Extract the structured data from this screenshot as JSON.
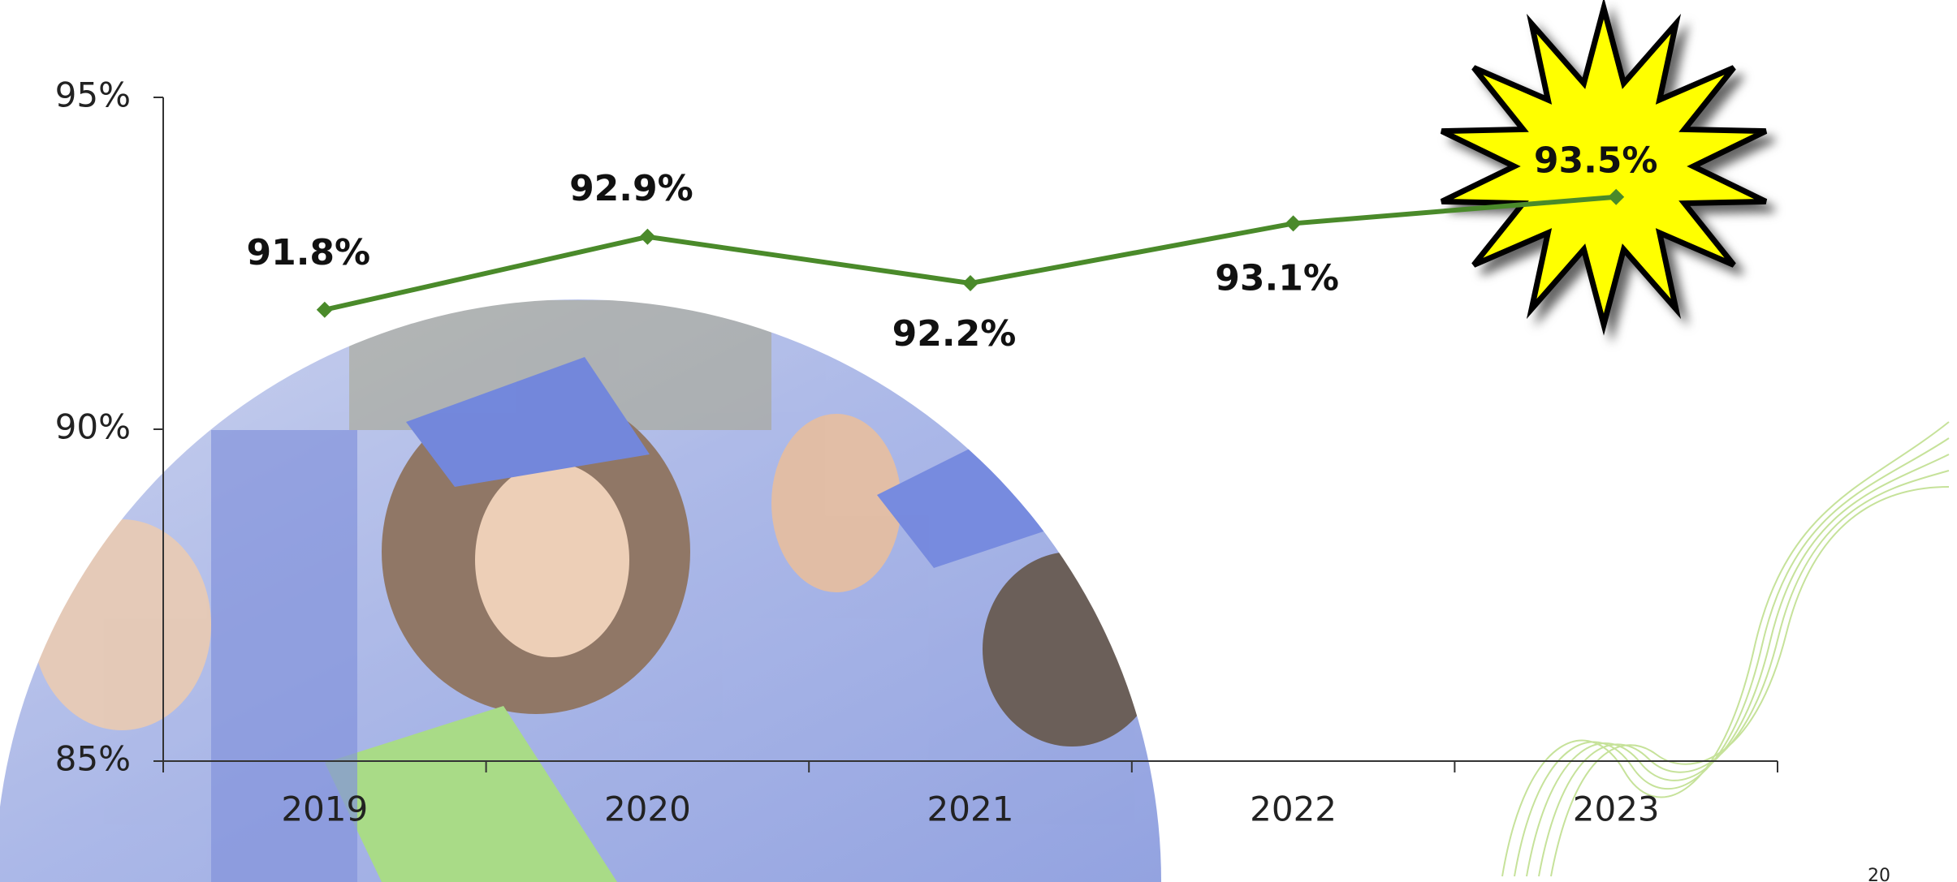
{
  "chart_data": {
    "type": "line",
    "categories": [
      "2019",
      "2020",
      "2021",
      "2022",
      "2023"
    ],
    "series": [
      {
        "color": "#4a8a2a",
        "values": [
          91.8,
          92.9,
          92.2,
          93.1,
          93.5
        ],
        "value_labels": [
          "91.8%",
          "92.9%",
          "92.2%",
          "93.1%",
          "93.5%"
        ]
      }
    ],
    "ylim": [
      85,
      95
    ],
    "yticks": [
      {
        "value": 85,
        "label": "85%"
      },
      {
        "value": 90,
        "label": "90%"
      },
      {
        "value": 95,
        "label": "95%"
      }
    ]
  },
  "page_number": "20"
}
